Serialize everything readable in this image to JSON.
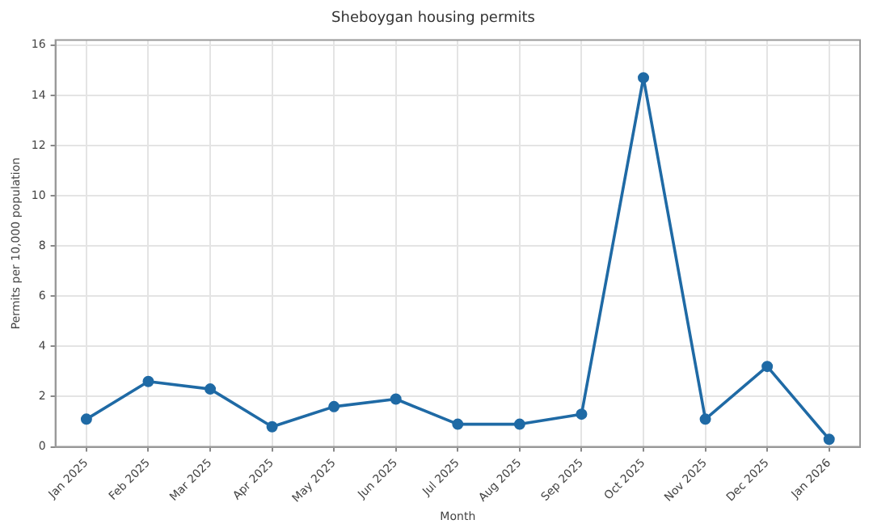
{
  "chart_data": {
    "type": "line",
    "title": "Sheboygan housing permits",
    "xlabel": "Month",
    "ylabel": "Permits per 10,000 population",
    "categories": [
      "Jan 2025",
      "Feb 2025",
      "Mar 2025",
      "Apr 2025",
      "May 2025",
      "Jun 2025",
      "Jul 2025",
      "Aug 2025",
      "Sep 2025",
      "Oct 2025",
      "Nov 2025",
      "Dec 2025",
      "Jan 2026"
    ],
    "series": [
      {
        "color": "#1f6aa5",
        "values": [
          1.1,
          2.6,
          2.3,
          0.8,
          1.6,
          1.9,
          0.9,
          0.9,
          1.3,
          14.7,
          1.1,
          3.2,
          0.3
        ]
      }
    ],
    "ylim": [
      0,
      16.2
    ],
    "yticks": [
      0,
      2,
      4,
      6,
      8,
      10,
      12,
      14,
      16
    ],
    "grid": true,
    "legend": false,
    "marker": "circle",
    "line_style": "solid"
  }
}
